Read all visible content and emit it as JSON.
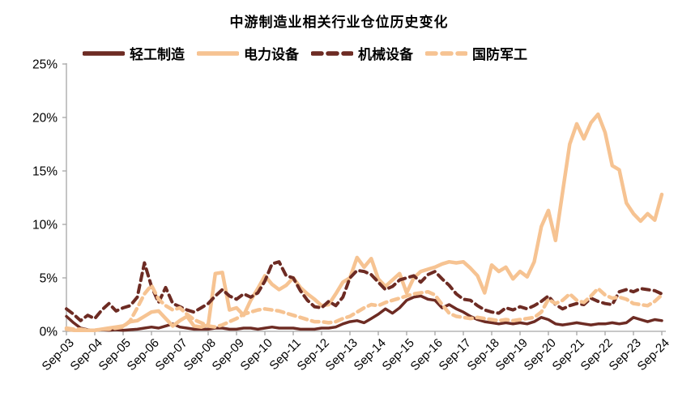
{
  "title": "中游制造业相关行业仓位历史变化",
  "colors": {
    "dark": "#6D2B23",
    "light": "#F6C392",
    "axis": "#A6A6A6",
    "text": "#000000"
  },
  "chart_data": {
    "type": "line",
    "title": "中游制造业相关行业仓位历史变化",
    "x_unit": "quarterly points from Sep-03 to Sep-24",
    "x_tick_labels": [
      "Sep-03",
      "Sep-04",
      "Sep-05",
      "Sep-06",
      "Sep-07",
      "Sep-08",
      "Sep-09",
      "Sep-10",
      "Sep-11",
      "Sep-12",
      "Sep-13",
      "Sep-14",
      "Sep-15",
      "Sep-16",
      "Sep-17",
      "Sep-18",
      "Sep-19",
      "Sep-20",
      "Sep-21",
      "Sep-22",
      "Sep-23",
      "Sep-24"
    ],
    "y_tick_labels": [
      "0%",
      "5%",
      "10%",
      "15%",
      "20%",
      "25%"
    ],
    "ylim": [
      0,
      25
    ],
    "grid": false,
    "legend_position": "top",
    "series": [
      {
        "name": "轻工制造",
        "color": "#6D2B23",
        "style": "solid",
        "values": [
          1.4,
          0.8,
          0.3,
          0.15,
          0.1,
          0.15,
          0.1,
          0.15,
          0.1,
          0.15,
          0.2,
          0.3,
          0.4,
          0.3,
          0.5,
          0.7,
          0.4,
          0.3,
          0.2,
          0.2,
          0.2,
          0.3,
          0.3,
          0.2,
          0.2,
          0.3,
          0.3,
          0.2,
          0.3,
          0.4,
          0.3,
          0.3,
          0.3,
          0.2,
          0.2,
          0.2,
          0.3,
          0.3,
          0.4,
          0.7,
          0.9,
          1.0,
          0.8,
          1.2,
          1.6,
          2.1,
          1.7,
          2.2,
          2.9,
          3.2,
          3.3,
          3.0,
          2.9,
          2.2,
          2.5,
          2.1,
          1.8,
          1.4,
          1.1,
          0.9,
          0.8,
          0.7,
          0.8,
          0.7,
          0.8,
          0.7,
          0.9,
          1.3,
          1.1,
          0.7,
          0.6,
          0.7,
          0.8,
          0.7,
          0.6,
          0.7,
          0.7,
          0.8,
          0.7,
          0.8,
          1.3,
          1.1,
          0.9,
          1.1,
          1.0
        ]
      },
      {
        "name": "电力设备",
        "color": "#F6C392",
        "style": "solid",
        "values": [
          0.2,
          0.1,
          0.1,
          0.1,
          0.1,
          0.2,
          0.3,
          0.4,
          0.5,
          0.9,
          1.0,
          1.4,
          1.8,
          1.9,
          1.2,
          0.5,
          1.0,
          1.4,
          0.5,
          0.4,
          0.6,
          5.4,
          5.5,
          2.0,
          2.2,
          1.5,
          2.9,
          4.0,
          5.2,
          4.4,
          3.9,
          4.3,
          5.0,
          4.1,
          3.5,
          3.0,
          2.4,
          2.5,
          3.5,
          4.6,
          5.0,
          6.9,
          6.0,
          6.8,
          4.9,
          4.2,
          4.8,
          5.4,
          3.6,
          5.0,
          5.6,
          5.8,
          6.0,
          6.3,
          6.5,
          6.4,
          6.5,
          5.9,
          5.2,
          3.6,
          6.2,
          5.6,
          6.0,
          4.9,
          5.6,
          5.1,
          6.5,
          9.8,
          11.3,
          8.5,
          13.0,
          17.5,
          19.4,
          18.0,
          19.5,
          20.3,
          18.6,
          15.5,
          15.1,
          12.0,
          11.0,
          10.3,
          11.0,
          10.4,
          12.8
        ]
      },
      {
        "name": "机械设备",
        "color": "#6D2B23",
        "style": "dashed",
        "values": [
          2.1,
          1.6,
          1.0,
          1.5,
          1.2,
          2.0,
          2.6,
          1.9,
          2.2,
          2.4,
          3.2,
          6.4,
          4.2,
          2.7,
          4.1,
          2.6,
          2.3,
          2.0,
          1.8,
          2.2,
          2.6,
          3.3,
          3.9,
          3.3,
          3.0,
          3.5,
          3.2,
          3.6,
          4.7,
          6.3,
          6.5,
          5.2,
          5.0,
          3.8,
          2.9,
          2.3,
          2.2,
          2.8,
          2.4,
          3.2,
          5.0,
          5.7,
          5.6,
          5.3,
          4.6,
          3.9,
          4.2,
          4.8,
          5.0,
          5.2,
          4.6,
          5.3,
          5.6,
          4.9,
          4.3,
          3.5,
          3.0,
          2.9,
          2.4,
          2.0,
          1.8,
          1.7,
          2.2,
          2.0,
          2.3,
          2.1,
          2.4,
          2.8,
          3.3,
          2.5,
          2.1,
          2.4,
          2.6,
          2.5,
          3.1,
          2.8,
          2.6,
          2.5,
          3.7,
          3.9,
          3.7,
          4.0,
          3.9,
          3.8,
          3.5
        ]
      },
      {
        "name": "国防军工",
        "color": "#F6C392",
        "style": "dashed",
        "values": [
          0.3,
          0.2,
          0.2,
          0.1,
          0.1,
          0.2,
          0.2,
          0.3,
          0.4,
          1.0,
          2.2,
          3.5,
          4.3,
          3.0,
          2.4,
          2.0,
          2.2,
          1.6,
          1.1,
          0.8,
          0.5,
          0.4,
          0.6,
          0.9,
          1.2,
          1.6,
          1.8,
          2.0,
          2.1,
          2.0,
          1.9,
          1.7,
          1.5,
          1.3,
          1.1,
          0.9,
          0.9,
          0.8,
          0.9,
          1.2,
          1.4,
          1.8,
          2.2,
          2.5,
          2.4,
          2.7,
          2.9,
          3.1,
          3.3,
          3.5,
          3.6,
          3.7,
          3.4,
          2.5,
          1.7,
          1.4,
          1.3,
          1.2,
          1.3,
          1.2,
          1.1,
          1.0,
          1.1,
          1.0,
          1.1,
          1.2,
          1.3,
          1.8,
          3.0,
          2.6,
          2.9,
          3.5,
          2.9,
          2.7,
          3.3,
          4.0,
          3.4,
          3.1,
          3.2,
          3.0,
          2.6,
          2.5,
          2.4,
          2.8,
          3.4
        ]
      }
    ]
  }
}
